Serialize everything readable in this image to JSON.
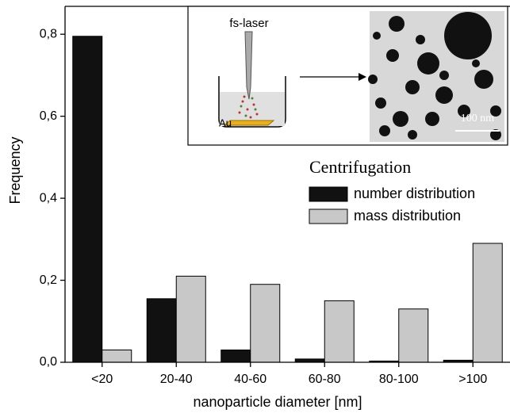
{
  "chart_data": {
    "type": "bar",
    "categories": [
      "<20",
      "20-40",
      "40-60",
      "60-80",
      "80-100",
      ">100"
    ],
    "series": [
      {
        "name": "number distribution",
        "color": "#111111",
        "values": [
          0.795,
          0.155,
          0.03,
          0.008,
          0.003,
          0.005
        ]
      },
      {
        "name": "mass distribution",
        "color": "#c8c8c8",
        "values": [
          0.03,
          0.21,
          0.19,
          0.15,
          0.13,
          0.29
        ]
      }
    ],
    "ylim": [
      0,
      0.868
    ],
    "yticks": [
      {
        "value": 0,
        "label": "0,0"
      },
      {
        "value": 0.2,
        "label": "0,2"
      },
      {
        "value": 0.4,
        "label": "0,4"
      },
      {
        "value": 0.6,
        "label": "0,6"
      },
      {
        "value": 0.8,
        "label": "0,8"
      }
    ],
    "x_label": "nanoparticle diameter [nm]",
    "y_label": "Frequency",
    "annotation": "Centrifugation",
    "legend": "upper right",
    "inset": {
      "laser_label": "fs-laser",
      "substrate_label": "Au",
      "scale_label": "100 nm"
    }
  }
}
